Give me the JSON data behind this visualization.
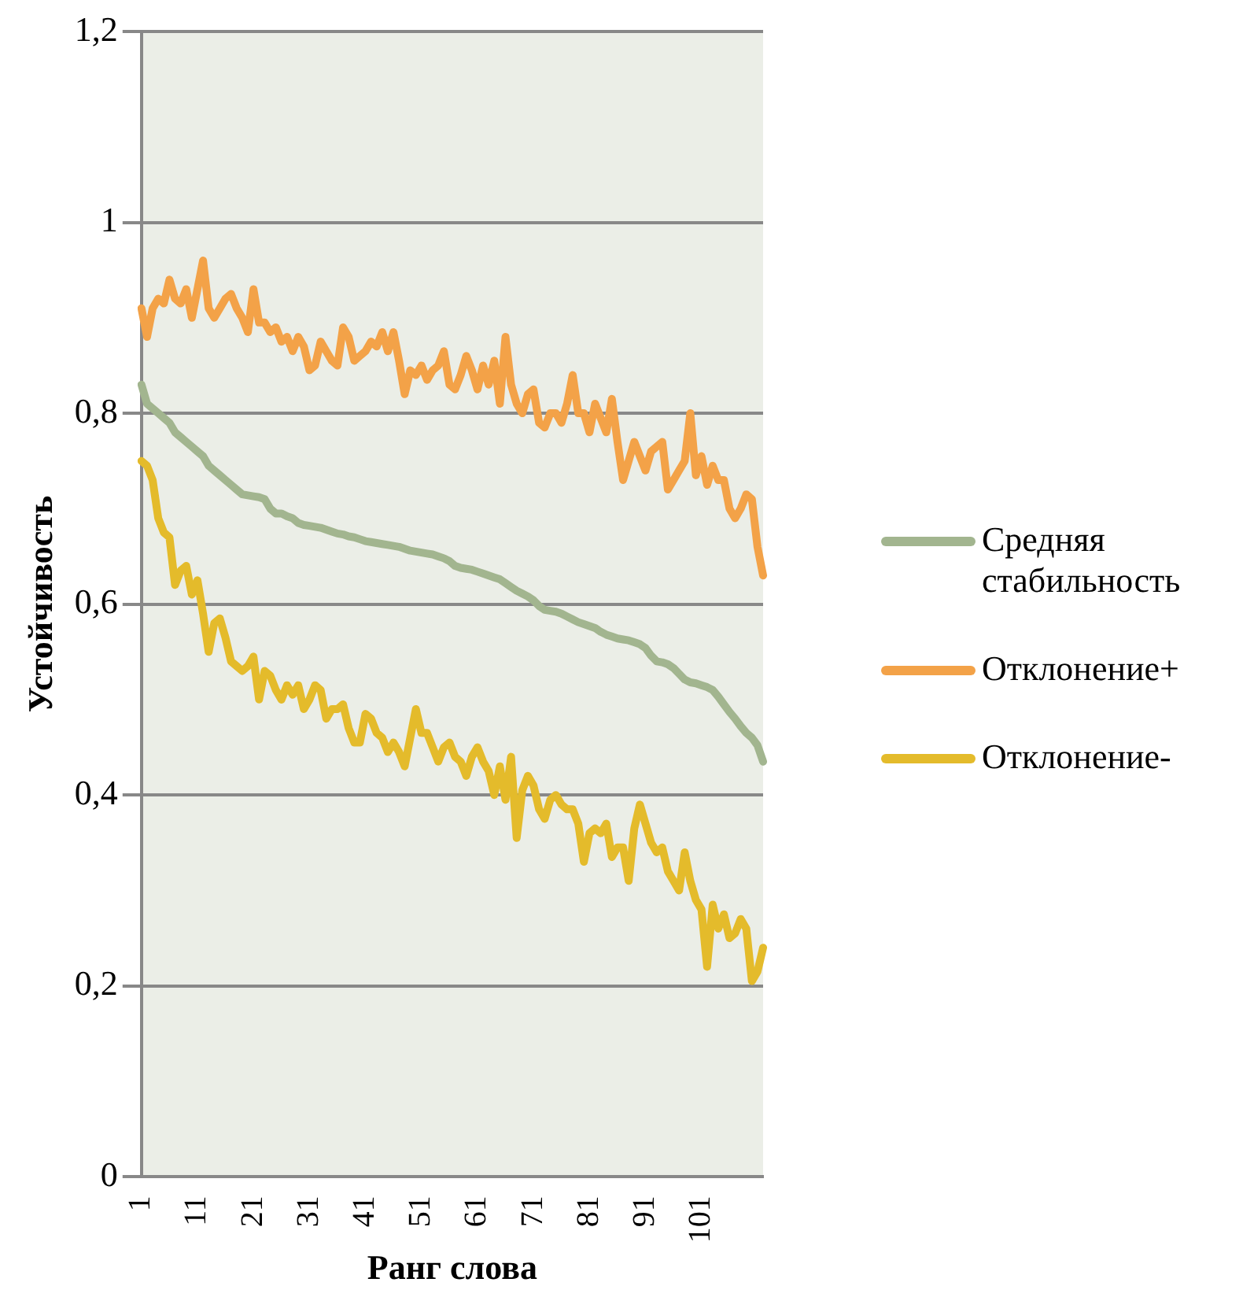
{
  "chart_data": {
    "type": "line",
    "xlabel": "Ранг слова",
    "ylabel": "Устойчивость",
    "categories": [
      "1",
      null,
      null,
      null,
      null,
      null,
      null,
      null,
      null,
      null,
      "11",
      null,
      null,
      null,
      null,
      null,
      null,
      null,
      null,
      null,
      "21",
      null,
      null,
      null,
      null,
      null,
      null,
      null,
      null,
      null,
      "31",
      null,
      null,
      null,
      null,
      null,
      null,
      null,
      null,
      null,
      "41",
      null,
      null,
      null,
      null,
      null,
      null,
      null,
      null,
      null,
      "51",
      null,
      null,
      null,
      null,
      null,
      null,
      null,
      null,
      null,
      "61",
      null,
      null,
      null,
      null,
      null,
      null,
      null,
      null,
      null,
      "71",
      null,
      null,
      null,
      null,
      null,
      null,
      null,
      null,
      null,
      "81",
      null,
      null,
      null,
      null,
      null,
      null,
      null,
      null,
      null,
      "91",
      null,
      null,
      null,
      null,
      null,
      null,
      null,
      null,
      null,
      "101",
      null,
      null,
      null,
      null,
      null,
      null,
      null,
      null,
      null,
      null,
      null
    ],
    "series": [
      {
        "name": "Средняя стабильность",
        "color": "#a2b58f",
        "values": [
          0.83,
          0.81,
          0.805,
          0.8,
          0.795,
          0.79,
          0.78,
          0.775,
          0.77,
          0.765,
          0.76,
          0.755,
          0.745,
          0.74,
          0.735,
          0.73,
          0.725,
          0.72,
          0.715,
          0.714,
          0.713,
          0.712,
          0.71,
          0.7,
          0.695,
          0.695,
          0.692,
          0.69,
          0.685,
          0.683,
          0.682,
          0.681,
          0.68,
          0.678,
          0.676,
          0.674,
          0.673,
          0.671,
          0.67,
          0.668,
          0.666,
          0.665,
          0.664,
          0.663,
          0.662,
          0.661,
          0.66,
          0.658,
          0.656,
          0.655,
          0.654,
          0.653,
          0.652,
          0.65,
          0.648,
          0.645,
          0.64,
          0.638,
          0.637,
          0.636,
          0.634,
          0.632,
          0.63,
          0.628,
          0.626,
          0.622,
          0.618,
          0.614,
          0.611,
          0.608,
          0.604,
          0.598,
          0.594,
          0.593,
          0.592,
          0.59,
          0.587,
          0.584,
          0.581,
          0.579,
          0.577,
          0.575,
          0.571,
          0.568,
          0.566,
          0.564,
          0.563,
          0.562,
          0.56,
          0.558,
          0.554,
          0.546,
          0.54,
          0.539,
          0.537,
          0.533,
          0.527,
          0.521,
          0.518,
          0.517,
          0.515,
          0.513,
          0.51,
          0.503,
          0.495,
          0.487,
          0.48,
          0.472,
          0.465,
          0.46,
          0.452,
          0.435
        ]
      },
      {
        "name": "Отклонение+",
        "color": "#f3a248",
        "values": [
          0.91,
          0.88,
          0.91,
          0.92,
          0.915,
          0.94,
          0.92,
          0.915,
          0.93,
          0.9,
          0.93,
          0.96,
          0.91,
          0.9,
          0.91,
          0.92,
          0.925,
          0.91,
          0.9,
          0.885,
          0.93,
          0.895,
          0.895,
          0.885,
          0.89,
          0.875,
          0.88,
          0.865,
          0.88,
          0.87,
          0.845,
          0.85,
          0.875,
          0.865,
          0.855,
          0.85,
          0.89,
          0.88,
          0.855,
          0.86,
          0.865,
          0.875,
          0.87,
          0.885,
          0.865,
          0.885,
          0.855,
          0.82,
          0.845,
          0.84,
          0.85,
          0.835,
          0.845,
          0.85,
          0.865,
          0.83,
          0.825,
          0.84,
          0.86,
          0.845,
          0.825,
          0.85,
          0.83,
          0.855,
          0.81,
          0.88,
          0.83,
          0.81,
          0.8,
          0.82,
          0.825,
          0.79,
          0.785,
          0.8,
          0.8,
          0.79,
          0.81,
          0.84,
          0.8,
          0.8,
          0.78,
          0.81,
          0.795,
          0.78,
          0.815,
          0.77,
          0.73,
          0.75,
          0.77,
          0.755,
          0.74,
          0.76,
          0.765,
          0.77,
          0.72,
          0.73,
          0.74,
          0.75,
          0.8,
          0.735,
          0.755,
          0.725,
          0.745,
          0.73,
          0.73,
          0.7,
          0.69,
          0.7,
          0.715,
          0.71,
          0.66,
          0.63
        ]
      },
      {
        "name": "Отклонение-",
        "color": "#e4bb2b",
        "values": [
          0.75,
          0.745,
          0.73,
          0.69,
          0.675,
          0.67,
          0.62,
          0.635,
          0.64,
          0.61,
          0.625,
          0.59,
          0.55,
          0.58,
          0.585,
          0.565,
          0.54,
          0.535,
          0.53,
          0.535,
          0.545,
          0.5,
          0.53,
          0.525,
          0.51,
          0.5,
          0.515,
          0.505,
          0.515,
          0.49,
          0.5,
          0.515,
          0.51,
          0.48,
          0.49,
          0.49,
          0.495,
          0.47,
          0.455,
          0.455,
          0.485,
          0.48,
          0.465,
          0.46,
          0.445,
          0.455,
          0.445,
          0.43,
          0.46,
          0.49,
          0.465,
          0.465,
          0.45,
          0.435,
          0.45,
          0.455,
          0.44,
          0.435,
          0.42,
          0.44,
          0.45,
          0.435,
          0.425,
          0.4,
          0.43,
          0.395,
          0.44,
          0.355,
          0.405,
          0.42,
          0.41,
          0.385,
          0.375,
          0.395,
          0.4,
          0.39,
          0.385,
          0.385,
          0.37,
          0.33,
          0.36,
          0.365,
          0.36,
          0.37,
          0.335,
          0.345,
          0.345,
          0.31,
          0.365,
          0.39,
          0.37,
          0.35,
          0.34,
          0.345,
          0.32,
          0.31,
          0.3,
          0.34,
          0.31,
          0.29,
          0.28,
          0.22,
          0.285,
          0.26,
          0.275,
          0.25,
          0.255,
          0.27,
          0.26,
          0.205,
          0.215,
          0.24
        ]
      }
    ],
    "ylim": [
      0,
      1.2
    ],
    "yticks": [
      0,
      {
        "value": 0.2,
        "label": "0,2"
      },
      {
        "value": 0.4,
        "label": "0,4"
      },
      {
        "value": 0.6,
        "label": "0,6"
      },
      {
        "value": 0.8,
        "label": "0,8"
      },
      1,
      {
        "value": 1.2,
        "label": "1,2"
      }
    ],
    "grid": "y",
    "legend": "right",
    "marker": "none",
    "line_style": "solid"
  }
}
